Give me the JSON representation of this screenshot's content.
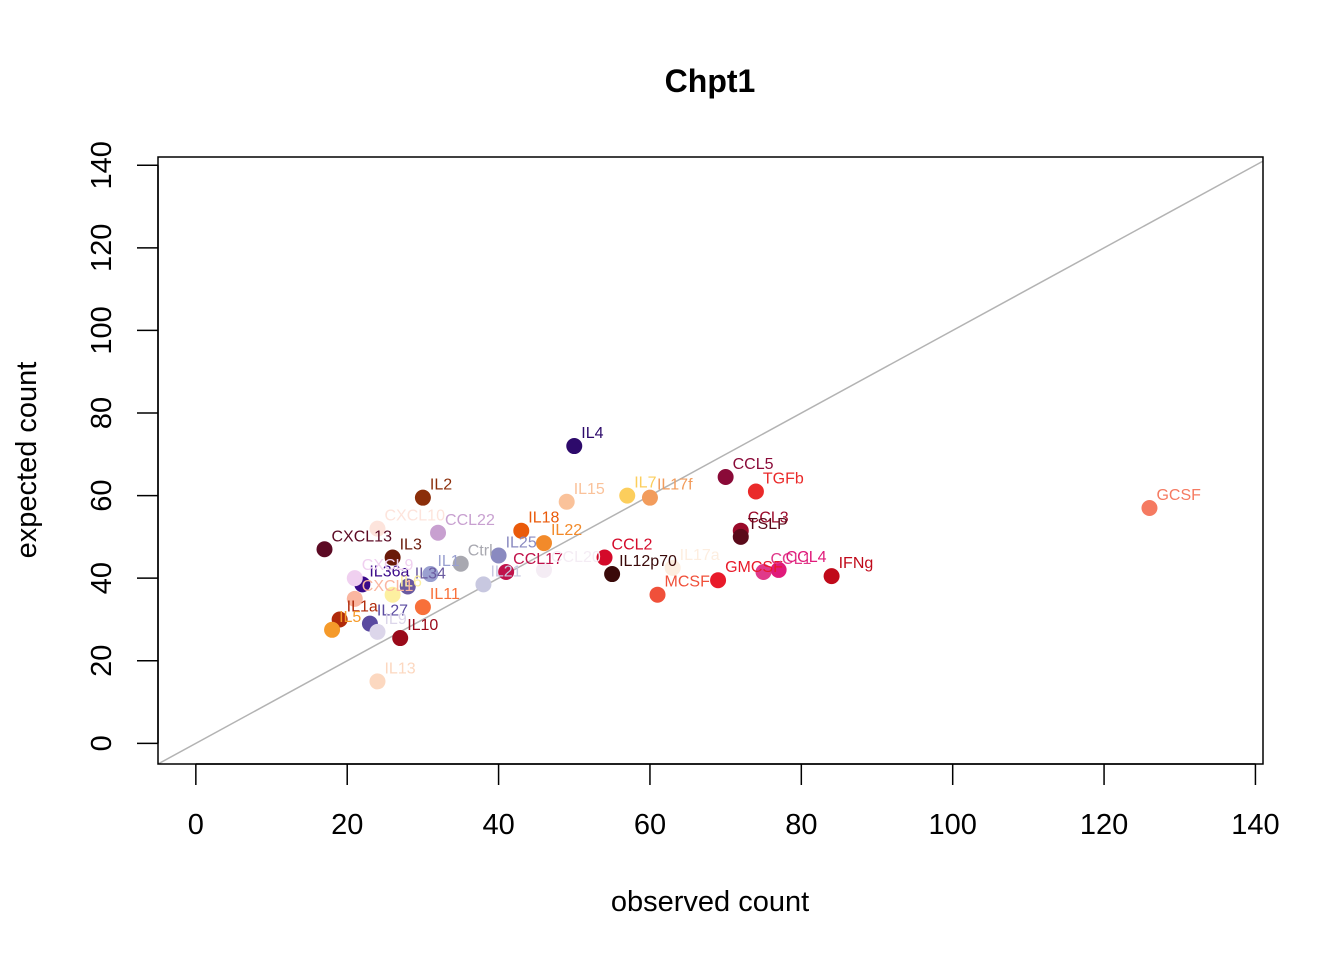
{
  "chart_data": {
    "type": "scatter",
    "title": "Chpt1",
    "xlabel": "observed count",
    "ylabel": "expected count",
    "xlim": [
      -5,
      141
    ],
    "ylim": [
      -5,
      142
    ],
    "xticks": [
      0,
      20,
      40,
      60,
      80,
      100,
      120,
      140
    ],
    "yticks": [
      0,
      20,
      40,
      60,
      80,
      100,
      120,
      140
    ],
    "reference_line": {
      "slope": 1,
      "intercept": 0,
      "color": "#b3b3b3"
    },
    "grid": false,
    "points": [
      {
        "label": "GCSF",
        "x": 126,
        "y": 57,
        "color": "#f57a61"
      },
      {
        "label": "IL4",
        "x": 50,
        "y": 72,
        "color": "#2d0a6b"
      },
      {
        "label": "CCL5",
        "x": 70,
        "y": 64.5,
        "color": "#8a0a38"
      },
      {
        "label": "TGFb",
        "x": 74,
        "y": 61,
        "color": "#ea2a2a"
      },
      {
        "label": "IL2",
        "x": 30,
        "y": 59.5,
        "color": "#8b2e0a"
      },
      {
        "label": "IL7",
        "x": 57,
        "y": 60,
        "color": "#fcce5c"
      },
      {
        "label": "IL17f",
        "x": 60,
        "y": 59.5,
        "color": "#f29c5c"
      },
      {
        "label": "IL15",
        "x": 49,
        "y": 58.5,
        "color": "#fac29a"
      },
      {
        "label": "CCL3",
        "x": 72,
        "y": 51.5,
        "color": "#9a0a2a"
      },
      {
        "label": "TSLP",
        "x": 72,
        "y": 50,
        "color": "#5a0a1a"
      },
      {
        "label": "CXCL10",
        "x": 24,
        "y": 52,
        "color": "#fde4dc"
      },
      {
        "label": "CCL22",
        "x": 32,
        "y": 51,
        "color": "#c8a0d0"
      },
      {
        "label": "IL18",
        "x": 43,
        "y": 51.5,
        "color": "#ea5a0a"
      },
      {
        "label": "IL22",
        "x": 46,
        "y": 48.5,
        "color": "#f28a2a"
      },
      {
        "label": "CXCL13",
        "x": 17,
        "y": 47,
        "color": "#5c0a24"
      },
      {
        "label": "IL3",
        "x": 26,
        "y": 45,
        "color": "#6a1a0a"
      },
      {
        "label": "Ctrl",
        "x": 35,
        "y": 43.5,
        "color": "#a8a8b0"
      },
      {
        "label": "IL25",
        "x": 40,
        "y": 45.5,
        "color": "#8a8ac0"
      },
      {
        "label": "CCL2",
        "x": 54,
        "y": 45,
        "color": "#d40a2a"
      },
      {
        "label": "CCL17",
        "x": 41,
        "y": 41.5,
        "color": "#c0124a"
      },
      {
        "label": "CCL20",
        "x": 46,
        "y": 42,
        "color": "#f4ecf4"
      },
      {
        "label": "IL12p70",
        "x": 55,
        "y": 41,
        "color": "#3a0a0a"
      },
      {
        "label": "IL17a",
        "x": 63,
        "y": 42.5,
        "color": "#fdeee0"
      },
      {
        "label": "GMCSF",
        "x": 69,
        "y": 39.5,
        "color": "#e81a2a"
      },
      {
        "label": "CCL1",
        "x": 75,
        "y": 41.5,
        "color": "#e03a8a"
      },
      {
        "label": "CCL4",
        "x": 77,
        "y": 42,
        "color": "#e01a7a"
      },
      {
        "label": "IFNg",
        "x": 84,
        "y": 40.5,
        "color": "#c00a1a"
      },
      {
        "label": "MCSF",
        "x": 61,
        "y": 36,
        "color": "#f0503a"
      },
      {
        "label": "IL21",
        "x": 38,
        "y": 38.5,
        "color": "#c8c8e0"
      },
      {
        "label": "IL1",
        "x": 31,
        "y": 41,
        "color": "#9aa0d0"
      },
      {
        "label": "IL36a",
        "x": 22,
        "y": 38.5,
        "color": "#3a0a8a"
      },
      {
        "label": "CXCL9",
        "x": 21,
        "y": 40,
        "color": "#f0d0f0"
      },
      {
        "label": "IL34",
        "x": 28,
        "y": 38,
        "color": "#6a5aa0"
      },
      {
        "label": "IL6",
        "x": 26,
        "y": 36,
        "color": "#fdf0a0"
      },
      {
        "label": "CXCL1",
        "x": 21,
        "y": 35,
        "color": "#fab6a0"
      },
      {
        "label": "IL11",
        "x": 30,
        "y": 33,
        "color": "#f8703a"
      },
      {
        "label": "IL1a",
        "x": 19,
        "y": 30,
        "color": "#b02a0a"
      },
      {
        "label": "IL27",
        "x": 23,
        "y": 29,
        "color": "#5a4aa0"
      },
      {
        "label": "IL5",
        "x": 18,
        "y": 27.5,
        "color": "#f59a2a"
      },
      {
        "label": "IL9",
        "x": 24,
        "y": 27,
        "color": "#dcd6ea"
      },
      {
        "label": "IL10",
        "x": 27,
        "y": 25.5,
        "color": "#9a0a1a"
      },
      {
        "label": "IL13",
        "x": 24,
        "y": 15,
        "color": "#fcd8c0"
      }
    ]
  }
}
